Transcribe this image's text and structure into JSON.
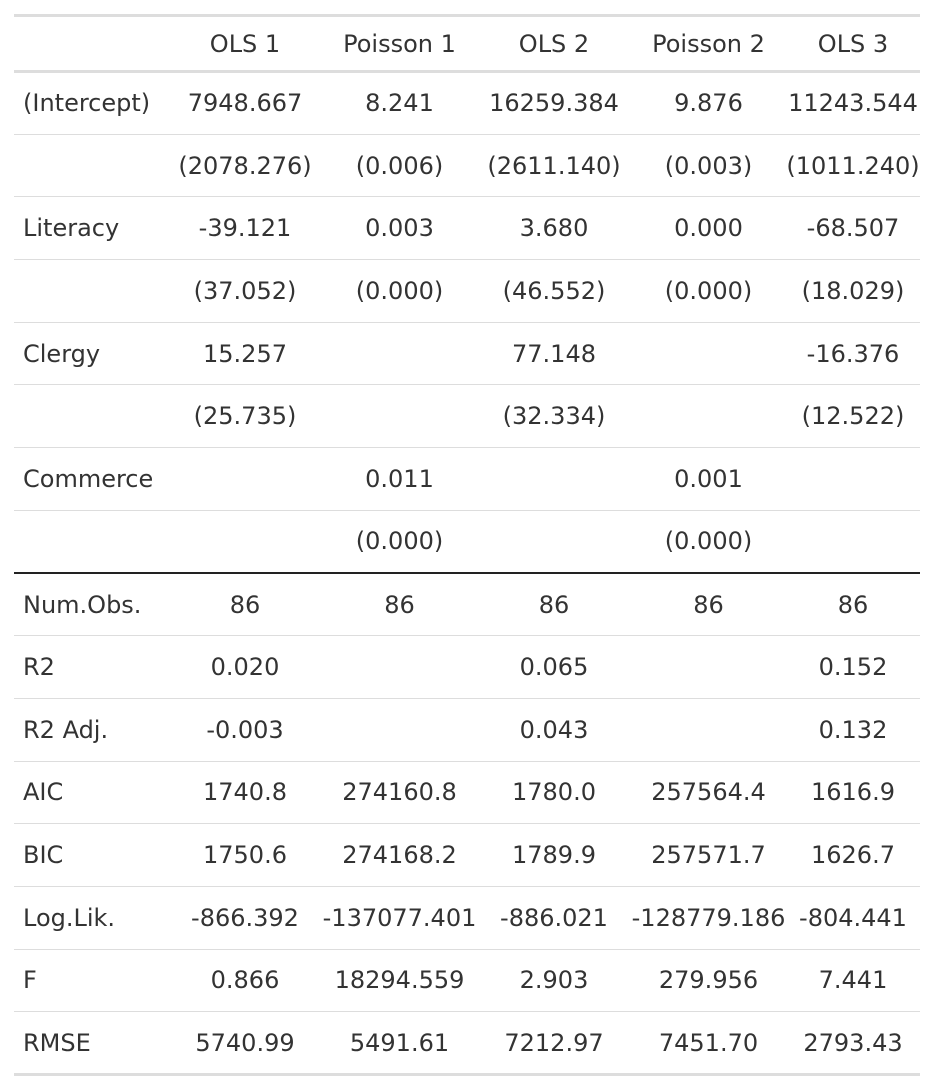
{
  "table": {
    "headers": [
      "",
      "OLS 1",
      "Poisson 1",
      "OLS 2",
      "Poisson 2",
      "OLS 3"
    ],
    "coef_rows": [
      [
        "(Intercept)",
        "7948.667",
        "8.241",
        "16259.384",
        "9.876",
        "11243.544"
      ],
      [
        "",
        "(2078.276)",
        "(0.006)",
        "(2611.140)",
        "(0.003)",
        "(1011.240)"
      ],
      [
        "Literacy",
        "-39.121",
        "0.003",
        "3.680",
        "0.000",
        "-68.507"
      ],
      [
        "",
        "(37.052)",
        "(0.000)",
        "(46.552)",
        "(0.000)",
        "(18.029)"
      ],
      [
        "Clergy",
        "15.257",
        "",
        "77.148",
        "",
        "-16.376"
      ],
      [
        "",
        "(25.735)",
        "",
        "(32.334)",
        "",
        "(12.522)"
      ],
      [
        "Commerce",
        "",
        "0.011",
        "",
        "0.001",
        ""
      ],
      [
        "",
        "",
        "(0.000)",
        "",
        "(0.000)",
        ""
      ]
    ],
    "stat_rows": [
      [
        "Num.Obs.",
        "86",
        "86",
        "86",
        "86",
        "86"
      ],
      [
        "R2",
        "0.020",
        "",
        "0.065",
        "",
        "0.152"
      ],
      [
        "R2 Adj.",
        "-0.003",
        "",
        "0.043",
        "",
        "0.132"
      ],
      [
        "AIC",
        "1740.8",
        "274160.8",
        "1780.0",
        "257564.4",
        "1616.9"
      ],
      [
        "BIC",
        "1750.6",
        "274168.2",
        "1789.9",
        "257571.7",
        "1626.7"
      ],
      [
        "Log.Lik.",
        "-866.392",
        "-137077.401",
        "-886.021",
        "-128779.186",
        "-804.441"
      ],
      [
        "F",
        "0.866",
        "18294.559",
        "2.903",
        "279.956",
        "7.441"
      ],
      [
        "RMSE",
        "5740.99",
        "5491.61",
        "7212.97",
        "7451.70",
        "2793.43"
      ]
    ]
  }
}
